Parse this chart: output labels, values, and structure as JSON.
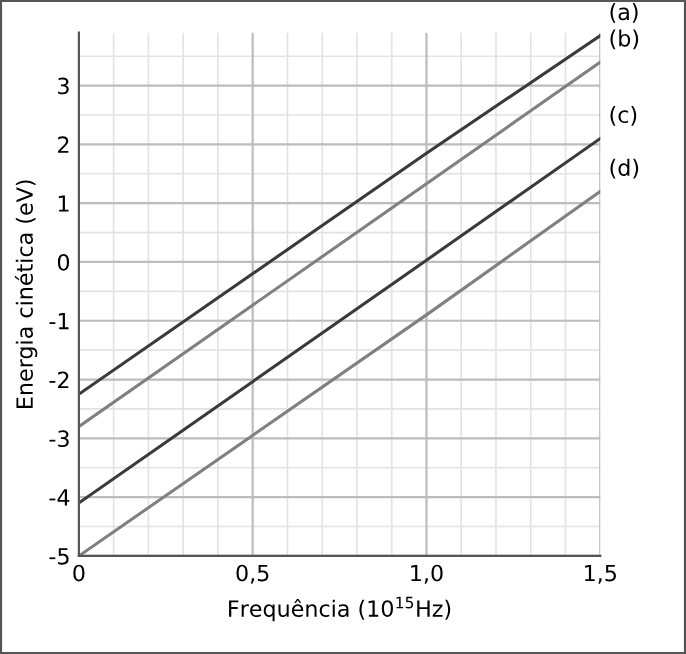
{
  "chart_data": {
    "type": "line",
    "xlabel": "Frequência (10$^{15}$Hz)",
    "ylabel": "Energia cinética (eV)",
    "x": [
      0,
      1.0,
      1.5
    ],
    "series": [
      {
        "name": "(a)",
        "color": "#3a3a3a",
        "values": [
          -2.25,
          1.85,
          3.85
        ]
      },
      {
        "name": "(b)",
        "color": "#808080",
        "values": [
          -2.8,
          1.33,
          3.4
        ]
      },
      {
        "name": "(c)",
        "color": "#3a3a3a",
        "values": [
          -4.1,
          0.03,
          2.1
        ]
      },
      {
        "name": "(d)",
        "color": "#808080",
        "values": [
          -5,
          -0.9,
          1.2
        ]
      }
    ],
    "xlim": [
      0,
      1.5
    ],
    "ylim": [
      -5,
      3.9
    ],
    "xticks": [
      {
        "value": 0,
        "label": "0"
      },
      {
        "value": 0.5,
        "label": "0,5"
      },
      {
        "value": 1.0,
        "label": "1,0"
      },
      {
        "value": 1.5,
        "label": "1,5"
      }
    ],
    "yticks": [
      -5,
      -4,
      -3,
      -2,
      -1,
      0,
      1,
      2,
      3
    ],
    "grid": true,
    "legend": false,
    "marker": "none",
    "line_style": "solid"
  }
}
